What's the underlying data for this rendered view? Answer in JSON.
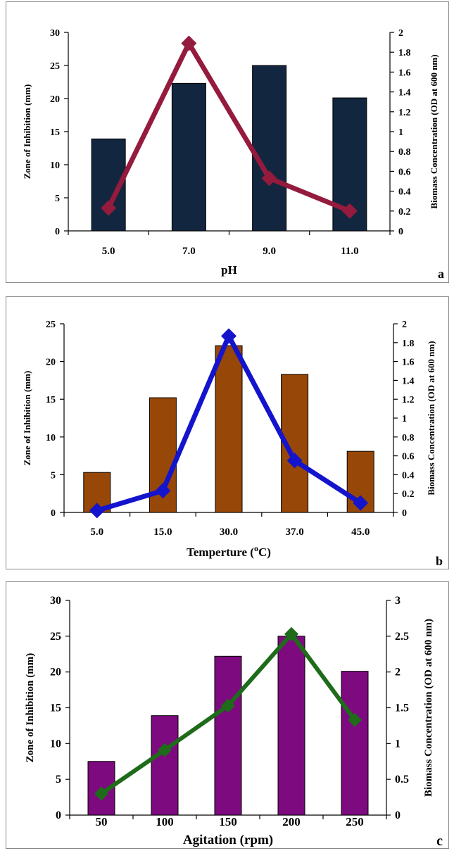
{
  "chart_data": [
    {
      "type": "bar",
      "panel_label": "a",
      "xlabel": "pH",
      "ylabel": "Zone of Inhibition (mm)",
      "y2label": "Biomass Concentration (OD at 600 nm)",
      "categories": [
        "5.0",
        "7.0",
        "9.0",
        "11.0"
      ],
      "ylim": [
        0,
        30
      ],
      "yticks": [
        "0",
        "5",
        "10",
        "15",
        "20",
        "25",
        "30"
      ],
      "y2lim": [
        0,
        2
      ],
      "y2ticks": [
        "0",
        "0.2",
        "0.4",
        "0.6",
        "0.8",
        "1",
        "1.2",
        "1.4",
        "1.6",
        "1.8",
        "2"
      ],
      "bar_color": "#13263f",
      "line_color": "#941b3d",
      "series": [
        {
          "type": "bar",
          "axis": "left",
          "values": [
            13.9,
            22.3,
            25.0,
            20.1
          ]
        },
        {
          "type": "line",
          "axis": "right",
          "marker": "diamond",
          "values": [
            0.23,
            1.89,
            0.53,
            0.2
          ]
        }
      ]
    },
    {
      "type": "bar",
      "panel_label": "b",
      "xlabel_parts": [
        "Temperture (",
        "o",
        "C)"
      ],
      "ylabel": "Zone of Inhibition (mm)",
      "y2label": "Biomass Concentration (OD at 600 nm)",
      "categories": [
        "5.0",
        "15.0",
        "30.0",
        "37.0",
        "45.0"
      ],
      "ylim": [
        0,
        25
      ],
      "yticks": [
        "0",
        "5",
        "10",
        "15",
        "20",
        "25"
      ],
      "y2lim": [
        0,
        2
      ],
      "y2ticks": [
        "0",
        "0.2",
        "0.4",
        "0.6",
        "0.8",
        "1",
        "1.2",
        "1.4",
        "1.6",
        "1.8",
        "2"
      ],
      "bar_color": "#974708",
      "line_color": "#1414cc",
      "series": [
        {
          "type": "bar",
          "axis": "left",
          "values": [
            5.3,
            15.2,
            22.1,
            18.3,
            8.1
          ]
        },
        {
          "type": "line",
          "axis": "right",
          "marker": "diamond",
          "values": [
            0.02,
            0.23,
            1.87,
            0.55,
            0.1
          ]
        }
      ]
    },
    {
      "type": "bar",
      "panel_label": "c",
      "xlabel": "Agitation (rpm)",
      "ylabel": "Zone of Inhibition (mm)",
      "y2label": "Biomass Concentration (OD at 600 nm)",
      "categories": [
        "50",
        "100",
        "150",
        "200",
        "250"
      ],
      "ylim": [
        0,
        30
      ],
      "yticks": [
        "0",
        "5",
        "10",
        "15",
        "20",
        "25",
        "30"
      ],
      "y2lim": [
        0,
        3
      ],
      "y2ticks": [
        "0",
        "0.5",
        "1",
        "1.5",
        "2",
        "2.5",
        "3"
      ],
      "bar_color": "#7d0a7e",
      "line_color": "#1e6b1a",
      "series": [
        {
          "type": "bar",
          "axis": "left",
          "values": [
            7.5,
            13.9,
            22.2,
            25.0,
            20.1
          ]
        },
        {
          "type": "line",
          "axis": "right",
          "marker": "diamond",
          "values": [
            0.3,
            0.91,
            1.53,
            2.53,
            1.33
          ]
        }
      ]
    }
  ]
}
